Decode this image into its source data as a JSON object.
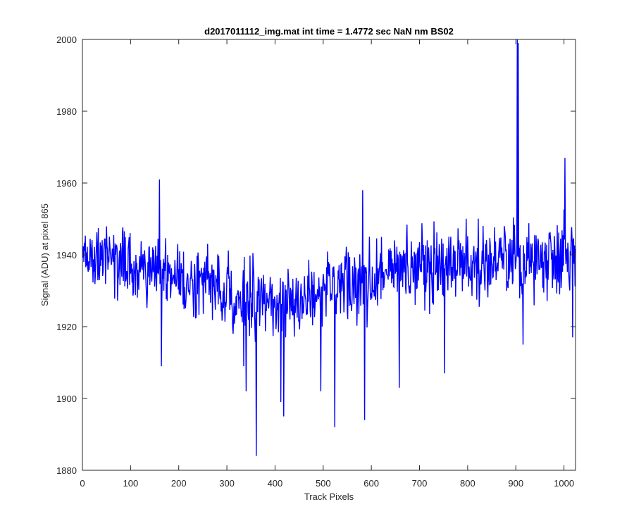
{
  "chart_data": {
    "type": "line",
    "title": "d2017011112_img.mat int time = 1.4772 sec  NaN nm BS02",
    "xlabel": "Track Pixels",
    "ylabel": "Signal (ADU) at pixel 865",
    "xlim": [
      0,
      1024
    ],
    "ylim": [
      1880,
      2000
    ],
    "xticks": [
      0,
      100,
      200,
      300,
      400,
      500,
      600,
      700,
      800,
      900,
      1000
    ],
    "yticks": [
      1880,
      1900,
      1920,
      1940,
      1960,
      1980,
      2000
    ],
    "xtick_labels": [
      "0",
      "100",
      "200",
      "300",
      "400",
      "500",
      "600",
      "700",
      "800",
      "900",
      "1000"
    ],
    "ytick_labels": [
      "1880",
      "1900",
      "1920",
      "1940",
      "1960",
      "1980",
      "2000"
    ],
    "grid": false,
    "line_color": "#0000ff",
    "series": [
      {
        "baseline": [
          [
            0,
            1939
          ],
          [
            50,
            1941
          ],
          [
            100,
            1937
          ],
          [
            150,
            1935
          ],
          [
            200,
            1934
          ],
          [
            250,
            1932
          ],
          [
            300,
            1930
          ],
          [
            350,
            1928
          ],
          [
            400,
            1926
          ],
          [
            450,
            1927
          ],
          [
            500,
            1929
          ],
          [
            550,
            1931
          ],
          [
            600,
            1933
          ],
          [
            650,
            1936
          ],
          [
            700,
            1937
          ],
          [
            750,
            1938
          ],
          [
            800,
            1938
          ],
          [
            850,
            1938
          ],
          [
            900,
            1938
          ],
          [
            950,
            1939
          ],
          [
            1000,
            1941
          ],
          [
            1024,
            1940
          ]
        ],
        "noise_amplitude": 9,
        "spikes": [
          {
            "x": 160,
            "y": 1961
          },
          {
            "x": 164,
            "y": 1909
          },
          {
            "x": 335,
            "y": 1909
          },
          {
            "x": 340,
            "y": 1902
          },
          {
            "x": 361,
            "y": 1884
          },
          {
            "x": 412,
            "y": 1899
          },
          {
            "x": 418,
            "y": 1895
          },
          {
            "x": 495,
            "y": 1902
          },
          {
            "x": 524,
            "y": 1892
          },
          {
            "x": 582,
            "y": 1958
          },
          {
            "x": 586,
            "y": 1894
          },
          {
            "x": 658,
            "y": 1903
          },
          {
            "x": 752,
            "y": 1907
          },
          {
            "x": 903,
            "y": 2000
          },
          {
            "x": 905,
            "y": 1999
          },
          {
            "x": 915,
            "y": 1915
          },
          {
            "x": 1002,
            "y": 1967
          },
          {
            "x": 1018,
            "y": 1917
          }
        ]
      }
    ]
  }
}
